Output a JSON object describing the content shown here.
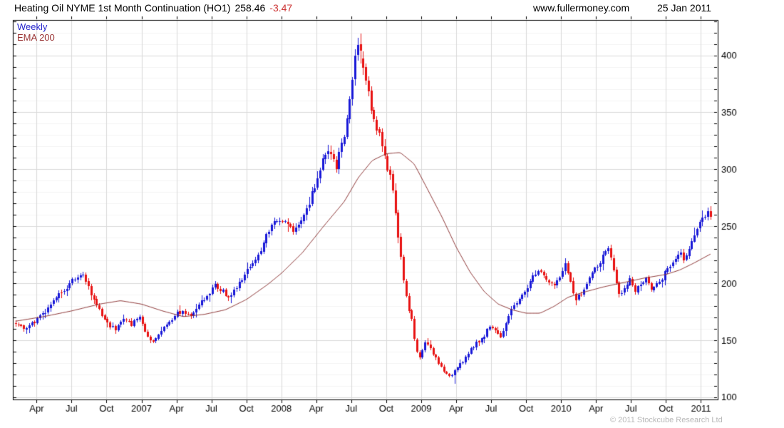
{
  "header": {
    "title": "Heating Oil NYME 1st Month Continuation (HO1)",
    "last_price": "258.46",
    "change": "-3.47",
    "website": "www.fullermoney.com",
    "date": "25 Jan 2011"
  },
  "legend": {
    "series": "Weekly",
    "overlay": "EMA 200"
  },
  "footer": {
    "copyright": "© 2011 Stockcube Research Ltd"
  },
  "chart_data": {
    "type": "candlestick",
    "title": "Heating Oil NYME 1st Month Continuation (HO1)",
    "interval": "weekly",
    "last_close": 258.46,
    "change": -3.47,
    "x_domain": [
      2006.08,
      2011.12
    ],
    "y_domain": [
      98,
      431
    ],
    "y_ticks": [
      100,
      150,
      200,
      250,
      300,
      350,
      400
    ],
    "y_minor_step": 10,
    "x_ticks": [
      [
        2006.25,
        "Apr"
      ],
      [
        2006.5,
        "Jul"
      ],
      [
        2006.75,
        "Oct"
      ],
      [
        2007,
        "2007"
      ],
      [
        2007.25,
        "Apr"
      ],
      [
        2007.5,
        "Jul"
      ],
      [
        2007.75,
        "Oct"
      ],
      [
        2008,
        "2008"
      ],
      [
        2008.25,
        "Apr"
      ],
      [
        2008.5,
        "Jul"
      ],
      [
        2008.75,
        "Oct"
      ],
      [
        2009,
        "2009"
      ],
      [
        2009.25,
        "Apr"
      ],
      [
        2009.5,
        "Jul"
      ],
      [
        2009.75,
        "Oct"
      ],
      [
        2010,
        "2010"
      ],
      [
        2010.25,
        "Apr"
      ],
      [
        2010.5,
        "Jul"
      ],
      [
        2010.75,
        "Oct"
      ],
      [
        2011,
        "2011"
      ]
    ],
    "colors": {
      "up": "#1818d8",
      "down": "#e81212",
      "ema": "#8c3434",
      "grid_major": "#d9d9d9",
      "grid_minor": "#f3f3f3",
      "axis": "#000000",
      "tick_text": "#000000"
    },
    "series_start": 2006.1,
    "series_end": 2011.068,
    "price_anchors": [
      [
        2006.1,
        166
      ],
      [
        2006.15,
        160
      ],
      [
        2006.21,
        164
      ],
      [
        2006.27,
        170
      ],
      [
        2006.33,
        178
      ],
      [
        2006.4,
        190
      ],
      [
        2006.47,
        197
      ],
      [
        2006.53,
        206
      ],
      [
        2006.57,
        209
      ],
      [
        2006.62,
        196
      ],
      [
        2006.66,
        185
      ],
      [
        2006.71,
        172
      ],
      [
        2006.76,
        163
      ],
      [
        2006.82,
        160
      ],
      [
        2006.87,
        167
      ],
      [
        2006.93,
        164
      ],
      [
        2006.98,
        171
      ],
      [
        2007.03,
        155
      ],
      [
        2007.07,
        147
      ],
      [
        2007.12,
        153
      ],
      [
        2007.18,
        165
      ],
      [
        2007.24,
        172
      ],
      [
        2007.3,
        176
      ],
      [
        2007.36,
        172
      ],
      [
        2007.42,
        182
      ],
      [
        2007.48,
        192
      ],
      [
        2007.53,
        199
      ],
      [
        2007.58,
        193
      ],
      [
        2007.63,
        187
      ],
      [
        2007.69,
        199
      ],
      [
        2007.75,
        212
      ],
      [
        2007.8,
        218
      ],
      [
        2007.84,
        224
      ],
      [
        2007.88,
        238
      ],
      [
        2007.93,
        252
      ],
      [
        2007.98,
        258
      ],
      [
        2008.04,
        250
      ],
      [
        2008.09,
        245
      ],
      [
        2008.14,
        256
      ],
      [
        2008.2,
        272
      ],
      [
        2008.26,
        295
      ],
      [
        2008.31,
        312
      ],
      [
        2008.35,
        318
      ],
      [
        2008.39,
        302
      ],
      [
        2008.44,
        325
      ],
      [
        2008.48,
        352
      ],
      [
        2008.51,
        382
      ],
      [
        2008.535,
        410
      ],
      [
        2008.56,
        406
      ],
      [
        2008.59,
        385
      ],
      [
        2008.62,
        368
      ],
      [
        2008.66,
        345
      ],
      [
        2008.7,
        330
      ],
      [
        2008.73,
        318
      ],
      [
        2008.76,
        300
      ],
      [
        2008.79,
        290
      ],
      [
        2008.81,
        265
      ],
      [
        2008.84,
        235
      ],
      [
        2008.87,
        205
      ],
      [
        2008.9,
        180
      ],
      [
        2008.93,
        168
      ],
      [
        2008.96,
        142
      ],
      [
        2008.99,
        134
      ],
      [
        2009.03,
        150
      ],
      [
        2009.07,
        143
      ],
      [
        2009.11,
        132
      ],
      [
        2009.15,
        126
      ],
      [
        2009.19,
        118
      ],
      [
        2009.23,
        121
      ],
      [
        2009.27,
        127
      ],
      [
        2009.32,
        136
      ],
      [
        2009.38,
        146
      ],
      [
        2009.44,
        153
      ],
      [
        2009.49,
        162
      ],
      [
        2009.53,
        157
      ],
      [
        2009.57,
        153
      ],
      [
        2009.61,
        167
      ],
      [
        2009.66,
        180
      ],
      [
        2009.71,
        188
      ],
      [
        2009.76,
        198
      ],
      [
        2009.8,
        207
      ],
      [
        2009.83,
        213
      ],
      [
        2009.87,
        206
      ],
      [
        2009.91,
        201
      ],
      [
        2009.95,
        197
      ],
      [
        2009.99,
        207
      ],
      [
        2010.03,
        220
      ],
      [
        2010.06,
        205
      ],
      [
        2010.1,
        185
      ],
      [
        2010.15,
        191
      ],
      [
        2010.2,
        203
      ],
      [
        2010.25,
        213
      ],
      [
        2010.3,
        224
      ],
      [
        2010.34,
        231
      ],
      [
        2010.37,
        214
      ],
      [
        2010.41,
        189
      ],
      [
        2010.45,
        195
      ],
      [
        2010.49,
        203
      ],
      [
        2010.53,
        193
      ],
      [
        2010.57,
        199
      ],
      [
        2010.61,
        205
      ],
      [
        2010.64,
        193
      ],
      [
        2010.68,
        199
      ],
      [
        2010.72,
        205
      ],
      [
        2010.76,
        211
      ],
      [
        2010.8,
        218
      ],
      [
        2010.84,
        228
      ],
      [
        2010.875,
        222
      ],
      [
        2010.91,
        230
      ],
      [
        2010.95,
        242
      ],
      [
        2010.99,
        252
      ],
      [
        2011.02,
        257
      ],
      [
        2011.045,
        263
      ],
      [
        2011.068,
        258.46
      ]
    ],
    "ema_anchors": [
      [
        2006.1,
        167
      ],
      [
        2006.3,
        171
      ],
      [
        2006.5,
        176
      ],
      [
        2006.7,
        182
      ],
      [
        2006.85,
        185
      ],
      [
        2007.0,
        182
      ],
      [
        2007.15,
        176
      ],
      [
        2007.3,
        171
      ],
      [
        2007.45,
        173
      ],
      [
        2007.6,
        177
      ],
      [
        2007.75,
        186
      ],
      [
        2007.9,
        199
      ],
      [
        2008.0,
        209
      ],
      [
        2008.15,
        227
      ],
      [
        2008.3,
        250
      ],
      [
        2008.45,
        272
      ],
      [
        2008.55,
        293
      ],
      [
        2008.65,
        308
      ],
      [
        2008.75,
        314
      ],
      [
        2008.85,
        315
      ],
      [
        2008.95,
        305
      ],
      [
        2009.04,
        284
      ],
      [
        2009.15,
        258
      ],
      [
        2009.25,
        232
      ],
      [
        2009.35,
        210
      ],
      [
        2009.45,
        193
      ],
      [
        2009.55,
        182
      ],
      [
        2009.65,
        177
      ],
      [
        2009.75,
        174
      ],
      [
        2009.85,
        174
      ],
      [
        2009.95,
        180
      ],
      [
        2010.05,
        188
      ],
      [
        2010.15,
        192
      ],
      [
        2010.3,
        197
      ],
      [
        2010.45,
        201
      ],
      [
        2010.6,
        205
      ],
      [
        2010.75,
        208
      ],
      [
        2010.85,
        212
      ],
      [
        2010.95,
        218
      ],
      [
        2011.07,
        226
      ]
    ]
  }
}
